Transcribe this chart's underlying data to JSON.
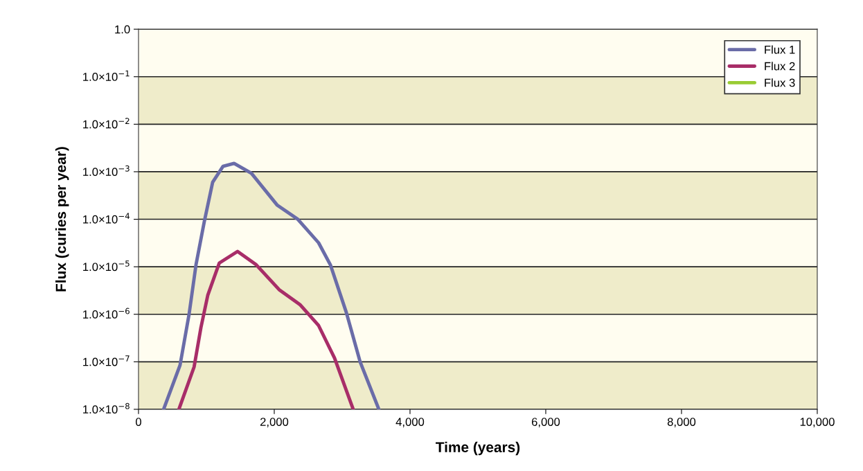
{
  "chart_data": {
    "type": "line",
    "xlabel": "Time (years)",
    "ylabel": "Flux (curies per year)",
    "log": "y",
    "xlim": [
      0,
      10000
    ],
    "xticks": [
      {
        "value": 0,
        "label": "0"
      },
      {
        "value": 2000,
        "label": "2,000"
      },
      {
        "value": 4000,
        "label": "4,000"
      },
      {
        "value": 6000,
        "label": "6,000"
      },
      {
        "value": 8000,
        "label": "8,000"
      },
      {
        "value": 10000,
        "label": "10,000"
      }
    ],
    "ylim": [
      1e-08,
      1
    ],
    "yticks": [
      {
        "value": 1,
        "label": "1.0"
      },
      {
        "value": 0.1,
        "label": "1.0×10$^{−1}$"
      },
      {
        "value": 0.01,
        "label": "1.0×10$^{−2}$"
      },
      {
        "value": 0.001,
        "label": "1.0×10$^{−3}$"
      },
      {
        "value": 0.0001,
        "label": "1.0×10$^{−4}$"
      },
      {
        "value": 1e-05,
        "label": "1.0×10$^{−5}$"
      },
      {
        "value": 1e-06,
        "label": "1.0×10$^{−6}$"
      },
      {
        "value": 1e-07,
        "label": "1.0×10$^{−7}$"
      },
      {
        "value": 1e-08,
        "label": "1.0×10$^{−8}$"
      }
    ],
    "grid": "y",
    "legend": "top right",
    "bands": [
      {
        "axis": "y",
        "from": 0.1,
        "to": 0.01,
        "color": "#efecca"
      },
      {
        "axis": "y",
        "from": 0.001,
        "to": 0.0001,
        "color": "#efecca"
      },
      {
        "axis": "y",
        "from": 1e-05,
        "to": 1e-06,
        "color": "#efecca"
      },
      {
        "axis": "y",
        "from": 1e-07,
        "to": 1e-08,
        "color": "#efecca"
      }
    ],
    "series": [
      {
        "name": "Flux 1",
        "color": "#6a6ca8",
        "x": [
          370,
          612,
          745,
          847,
          969,
          1092,
          1245,
          1408,
          1663,
          2041,
          2347,
          2653,
          2827,
          3061,
          3265,
          3541
        ],
        "values": [
          1e-08,
          8.5e-08,
          1e-06,
          1.1e-05,
          8.9e-05,
          0.0006,
          0.0013,
          0.0015,
          0.00093,
          0.0002,
          0.0001,
          3.2e-05,
          1.1e-05,
          1.1e-06,
          1e-07,
          1e-08
        ]
      },
      {
        "name": "Flux 2",
        "color": "#a82d68",
        "x": [
          595,
          819,
          919,
          1020,
          1190,
          1459,
          1735,
          2072,
          2378,
          2653,
          2888,
          3163
        ],
        "values": [
          1e-08,
          7.8e-08,
          5.2e-07,
          2.5e-06,
          1.2e-05,
          2.1e-05,
          1.1e-05,
          3.3e-06,
          1.6e-06,
          5.8e-07,
          1.2e-07,
          1e-08
        ]
      },
      {
        "name": "Flux 3",
        "color": "#99cc33"
      }
    ]
  }
}
